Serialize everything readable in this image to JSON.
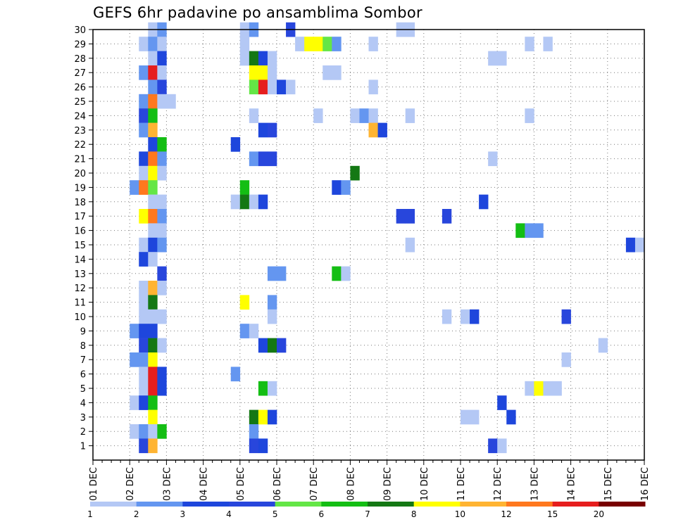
{
  "chart_data": {
    "type": "heatmap",
    "title": "GEFS 6hr padavine po ansamblima Sombor",
    "xlabel": "",
    "ylabel": "",
    "x_tick_labels": [
      "01 DEC",
      "02 DEC",
      "03 DEC",
      "04 DEC",
      "05 DEC",
      "06 DEC",
      "07 DEC",
      "08 DEC",
      "09 DEC",
      "10 DEC",
      "11 DEC",
      "12 DEC",
      "13 DEC",
      "14 DEC",
      "15 DEC",
      "16 DEC"
    ],
    "xlim": [
      0,
      60
    ],
    "x_unit": "6-hour steps from 01 DEC 00z",
    "y_tick_labels": [
      "1",
      "2",
      "3",
      "4",
      "5",
      "6",
      "7",
      "8",
      "9",
      "10",
      "11",
      "12",
      "13",
      "14",
      "15",
      "16",
      "17",
      "18",
      "19",
      "20",
      "21",
      "22",
      "23",
      "24",
      "25",
      "26",
      "27",
      "28",
      "29",
      "30"
    ],
    "ylim": [
      0,
      30
    ],
    "y_unit": "ensemble member",
    "grid": true,
    "colorbar": {
      "position": "bottom",
      "tick_labels": [
        "1",
        "2",
        "3",
        "4",
        "5",
        "6",
        "7",
        "8",
        "10",
        "12",
        "15",
        "20"
      ],
      "colors": [
        "#b4c8f5",
        "#6496f0",
        "#1e46dc",
        "#2846dc",
        "#64e646",
        "#14be14",
        "#147814",
        "#ffff00",
        "#ffb432",
        "#ff781e",
        "#e61e1e",
        "#780000"
      ]
    },
    "cells": [
      [
        7,
        30,
        1
      ],
      [
        8,
        30,
        2
      ],
      [
        17,
        30,
        1
      ],
      [
        18,
        30,
        2
      ],
      [
        22,
        30,
        4
      ],
      [
        34,
        30,
        1
      ],
      [
        35,
        30,
        1
      ],
      [
        6,
        29,
        1
      ],
      [
        7,
        29,
        2
      ],
      [
        8,
        29,
        1
      ],
      [
        17,
        29,
        1
      ],
      [
        23,
        29,
        1
      ],
      [
        24,
        29,
        8
      ],
      [
        25,
        29,
        8
      ],
      [
        26,
        29,
        5
      ],
      [
        27,
        29,
        2
      ],
      [
        31,
        29,
        1
      ],
      [
        48,
        29,
        1
      ],
      [
        50,
        29,
        1
      ],
      [
        7,
        28,
        1
      ],
      [
        8,
        28,
        3
      ],
      [
        17,
        28,
        1
      ],
      [
        18,
        28,
        7
      ],
      [
        19,
        28,
        3
      ],
      [
        20,
        28,
        1
      ],
      [
        44,
        28,
        1
      ],
      [
        45,
        28,
        1
      ],
      [
        6,
        27,
        2
      ],
      [
        7,
        27,
        11
      ],
      [
        8,
        27,
        1
      ],
      [
        18,
        27,
        8
      ],
      [
        19,
        27,
        8
      ],
      [
        20,
        27,
        1
      ],
      [
        26,
        27,
        1
      ],
      [
        27,
        27,
        1
      ],
      [
        7,
        26,
        2
      ],
      [
        8,
        26,
        4
      ],
      [
        18,
        26,
        5
      ],
      [
        19,
        26,
        11
      ],
      [
        20,
        26,
        1
      ],
      [
        21,
        26,
        3
      ],
      [
        22,
        26,
        1
      ],
      [
        31,
        26,
        1
      ],
      [
        6,
        25,
        2
      ],
      [
        7,
        25,
        10
      ],
      [
        8,
        25,
        1
      ],
      [
        9,
        25,
        1
      ],
      [
        6,
        24,
        4
      ],
      [
        7,
        24,
        6
      ],
      [
        18,
        24,
        1
      ],
      [
        25,
        24,
        1
      ],
      [
        29,
        24,
        1
      ],
      [
        30,
        24,
        2
      ],
      [
        31,
        24,
        1
      ],
      [
        35,
        24,
        1
      ],
      [
        48,
        24,
        1
      ],
      [
        6,
        23,
        2
      ],
      [
        7,
        23,
        9
      ],
      [
        19,
        23,
        3
      ],
      [
        20,
        23,
        4
      ],
      [
        31,
        23,
        9
      ],
      [
        32,
        23,
        3
      ],
      [
        7,
        22,
        3
      ],
      [
        8,
        22,
        6
      ],
      [
        16,
        22,
        3
      ],
      [
        6,
        21,
        3
      ],
      [
        7,
        21,
        10
      ],
      [
        8,
        21,
        2
      ],
      [
        18,
        21,
        2
      ],
      [
        19,
        21,
        4
      ],
      [
        20,
        21,
        4
      ],
      [
        44,
        21,
        1
      ],
      [
        6,
        20,
        1
      ],
      [
        7,
        20,
        8
      ],
      [
        8,
        20,
        1
      ],
      [
        29,
        20,
        7
      ],
      [
        5,
        19,
        2
      ],
      [
        6,
        19,
        10
      ],
      [
        7,
        19,
        5
      ],
      [
        17,
        19,
        6
      ],
      [
        27,
        19,
        3
      ],
      [
        28,
        19,
        2
      ],
      [
        7,
        18,
        1
      ],
      [
        8,
        18,
        1
      ],
      [
        16,
        18,
        1
      ],
      [
        17,
        18,
        7
      ],
      [
        18,
        18,
        1
      ],
      [
        19,
        18,
        3
      ],
      [
        43,
        18,
        3
      ],
      [
        6,
        17,
        8
      ],
      [
        7,
        17,
        10
      ],
      [
        8,
        17,
        2
      ],
      [
        34,
        17,
        4
      ],
      [
        35,
        17,
        4
      ],
      [
        39,
        17,
        4
      ],
      [
        7,
        16,
        1
      ],
      [
        8,
        16,
        1
      ],
      [
        47,
        16,
        6
      ],
      [
        48,
        16,
        2
      ],
      [
        49,
        16,
        2
      ],
      [
        6,
        15,
        1
      ],
      [
        7,
        15,
        3
      ],
      [
        8,
        15,
        2
      ],
      [
        35,
        15,
        1
      ],
      [
        59,
        15,
        3
      ],
      [
        60,
        15,
        1
      ],
      [
        6,
        14,
        3
      ],
      [
        7,
        14,
        1
      ],
      [
        8,
        13,
        4
      ],
      [
        20,
        13,
        2
      ],
      [
        21,
        13,
        2
      ],
      [
        27,
        13,
        6
      ],
      [
        28,
        13,
        1
      ],
      [
        6,
        12,
        1
      ],
      [
        7,
        12,
        9
      ],
      [
        8,
        12,
        1
      ],
      [
        6,
        11,
        1
      ],
      [
        7,
        11,
        7
      ],
      [
        17,
        11,
        8
      ],
      [
        20,
        11,
        2
      ],
      [
        6,
        10,
        1
      ],
      [
        7,
        10,
        1
      ],
      [
        8,
        10,
        1
      ],
      [
        20,
        10,
        1
      ],
      [
        39,
        10,
        1
      ],
      [
        41,
        10,
        1
      ],
      [
        42,
        10,
        3
      ],
      [
        52,
        10,
        4
      ],
      [
        5,
        9,
        2
      ],
      [
        6,
        9,
        3
      ],
      [
        7,
        9,
        3
      ],
      [
        17,
        9,
        2
      ],
      [
        18,
        9,
        1
      ],
      [
        6,
        8,
        4
      ],
      [
        7,
        8,
        7
      ],
      [
        8,
        8,
        1
      ],
      [
        19,
        8,
        3
      ],
      [
        20,
        8,
        7
      ],
      [
        21,
        8,
        4
      ],
      [
        56,
        8,
        1
      ],
      [
        5,
        7,
        2
      ],
      [
        6,
        7,
        2
      ],
      [
        7,
        7,
        8
      ],
      [
        52,
        7,
        1
      ],
      [
        6,
        6,
        1
      ],
      [
        7,
        6,
        11
      ],
      [
        8,
        6,
        3
      ],
      [
        16,
        6,
        2
      ],
      [
        6,
        5,
        1
      ],
      [
        7,
        5,
        11
      ],
      [
        8,
        5,
        3
      ],
      [
        19,
        5,
        6
      ],
      [
        20,
        5,
        1
      ],
      [
        48,
        5,
        1
      ],
      [
        49,
        5,
        8
      ],
      [
        50,
        5,
        1
      ],
      [
        51,
        5,
        1
      ],
      [
        5,
        4,
        1
      ],
      [
        6,
        4,
        3
      ],
      [
        7,
        4,
        6
      ],
      [
        45,
        4,
        3
      ],
      [
        7,
        3,
        8
      ],
      [
        18,
        3,
        7
      ],
      [
        19,
        3,
        8
      ],
      [
        20,
        3,
        3
      ],
      [
        41,
        3,
        1
      ],
      [
        42,
        3,
        1
      ],
      [
        46,
        3,
        3
      ],
      [
        5,
        2,
        1
      ],
      [
        6,
        2,
        2
      ],
      [
        7,
        2,
        1
      ],
      [
        8,
        2,
        6
      ],
      [
        18,
        2,
        2
      ],
      [
        6,
        1,
        4
      ],
      [
        7,
        1,
        9
      ],
      [
        18,
        1,
        4
      ],
      [
        19,
        1,
        3
      ],
      [
        44,
        1,
        4
      ],
      [
        45,
        1,
        1
      ]
    ]
  }
}
